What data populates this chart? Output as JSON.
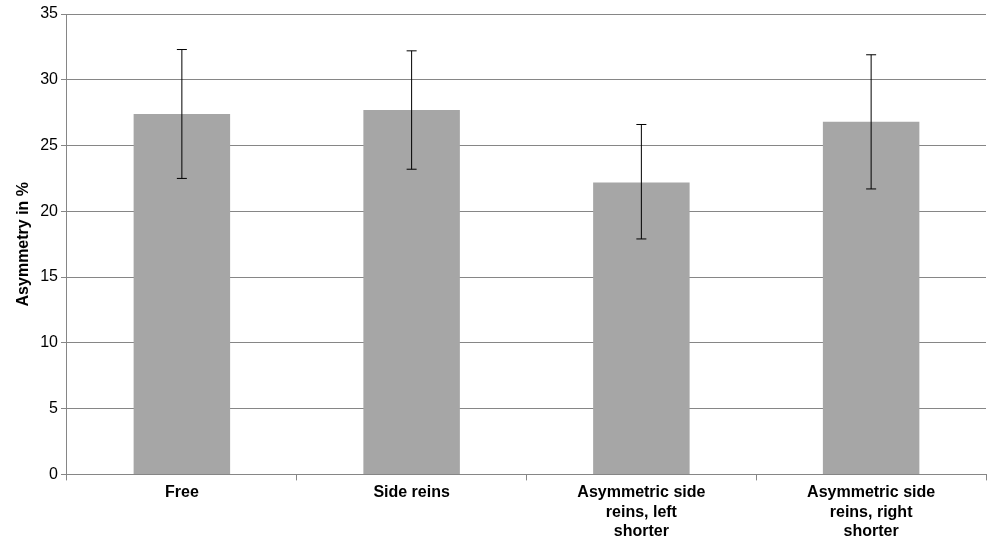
{
  "chart_data": {
    "type": "bar",
    "ylabel": "Asymmetry in %",
    "categories": [
      "Free",
      "Side reins",
      "Asymmetric side reins, left shorter",
      "Asymmetric side reins, right shorter"
    ],
    "values": [
      27.4,
      27.7,
      22.2,
      26.8
    ],
    "errors": [
      [
        22.5,
        32.3
      ],
      [
        23.2,
        32.2
      ],
      [
        17.9,
        26.6
      ],
      [
        21.7,
        31.9
      ]
    ],
    "color": "#a6a6a6",
    "ylim": [
      0,
      35
    ],
    "yticks": [
      0,
      5,
      10,
      15,
      20,
      25,
      30,
      35
    ],
    "grid": "y",
    "legend": false
  }
}
